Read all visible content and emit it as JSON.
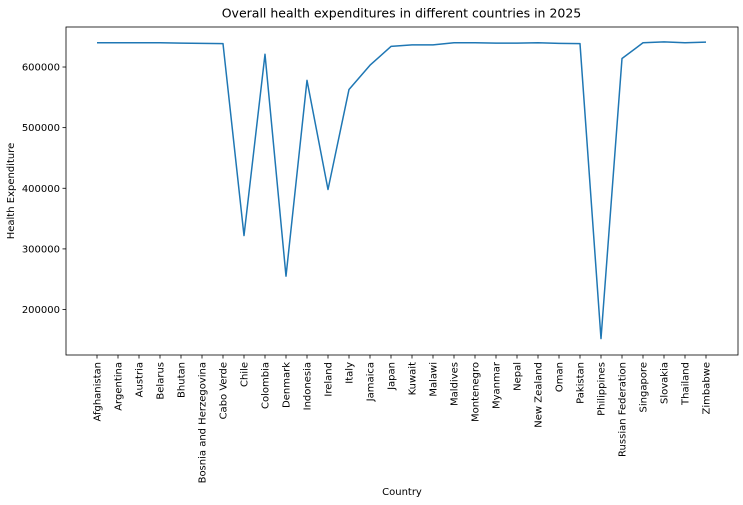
{
  "chart_data": {
    "type": "line",
    "title": "Overall health expenditures in different countries in 2025",
    "xlabel": "Country",
    "ylabel": "Health Expenditure",
    "categories": [
      "Afghanistan",
      "Argentina",
      "Austria",
      "Belarus",
      "Bhutan",
      "Bosnia and Herzegovina",
      "Cabo Verde",
      "Chile",
      "Colombia",
      "Denmark",
      "Indonesia",
      "Ireland",
      "Italy",
      "Jamaica",
      "Japan",
      "Kuwait",
      "Malawi",
      "Maldives",
      "Montenegro",
      "Myanmar",
      "Nepal",
      "New Zealand",
      "Oman",
      "Pakistan",
      "Philippines",
      "Russian Federation",
      "Singapore",
      "Slovakia",
      "Thailand",
      "Zimbabwe"
    ],
    "series": [
      {
        "values": [
          640000,
          640000,
          640000,
          640000,
          639500,
          639000,
          638500,
          322000,
          621000,
          255000,
          578000,
          398000,
          563000,
          603000,
          634000,
          636500,
          636500,
          640000,
          640000,
          639500,
          639500,
          640000,
          639000,
          638500,
          152000,
          614000,
          640000,
          641500,
          640000,
          641000
        ],
        "color": "#1f77b4"
      }
    ],
    "ylim": [
      125000,
      666000
    ],
    "yticks": [
      200000,
      300000,
      400000,
      500000,
      600000
    ],
    "grid": false,
    "legend": "none"
  }
}
